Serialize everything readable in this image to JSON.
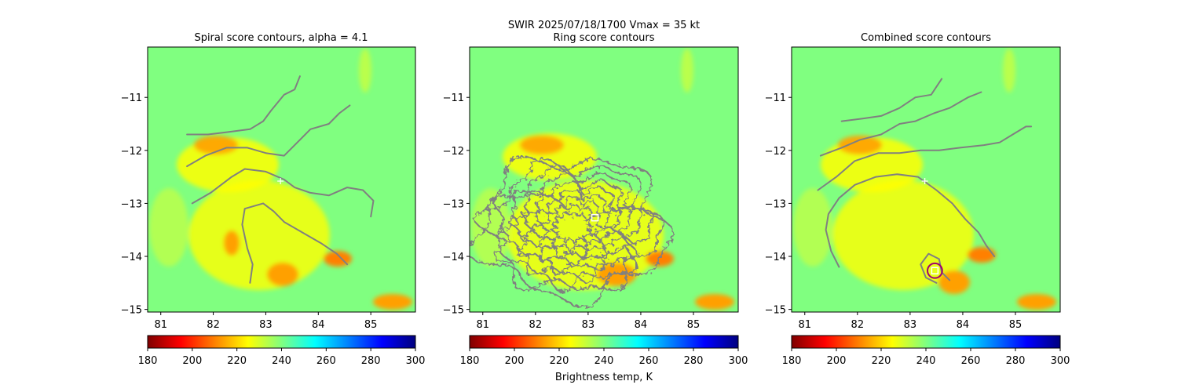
{
  "suptitle": {
    "line1": "SWIR  2025/07/18/1700    Vmax = 35 kt"
  },
  "colorbar_label": "Brightness temp, K",
  "colormap": "jet",
  "colors": {
    "background_field": "#7fff7f",
    "contour": "#808080",
    "center_circle": "#a0006e",
    "marker": "#ffffff"
  },
  "chart_data": [
    {
      "type": "heatmap",
      "title": "Spiral score contours, alpha =  4.1",
      "xlim": [
        80.75,
        85.85
      ],
      "ylim": [
        -15.05,
        -10.05
      ],
      "xticks": [
        "81",
        "82",
        "83",
        "84",
        "85"
      ],
      "yticks": [
        "−11",
        "−12",
        "−13",
        "−14",
        "−15"
      ],
      "colorbar": {
        "range": [
          180,
          300
        ],
        "ticks": [
          "180",
          "200",
          "220",
          "240",
          "260",
          "280",
          "300"
        ]
      },
      "contours": [
        [
          [
            81.5,
            -11.7
          ],
          [
            81.9,
            -11.7
          ],
          [
            82.3,
            -11.65
          ],
          [
            82.7,
            -11.6
          ],
          [
            82.95,
            -11.45
          ],
          [
            83.1,
            -11.25
          ],
          [
            83.35,
            -10.95
          ],
          [
            83.55,
            -10.85
          ],
          [
            83.65,
            -10.6
          ]
        ],
        [
          [
            81.5,
            -12.3
          ],
          [
            81.85,
            -12.1
          ],
          [
            82.25,
            -11.95
          ],
          [
            82.65,
            -11.95
          ],
          [
            83.0,
            -12.05
          ],
          [
            83.35,
            -12.1
          ],
          [
            83.6,
            -11.85
          ],
          [
            83.85,
            -11.6
          ],
          [
            84.2,
            -11.5
          ],
          [
            84.4,
            -11.3
          ],
          [
            84.6,
            -11.15
          ]
        ],
        [
          [
            81.6,
            -13.0
          ],
          [
            81.95,
            -12.8
          ],
          [
            82.35,
            -12.5
          ],
          [
            82.6,
            -12.35
          ],
          [
            83.0,
            -12.4
          ],
          [
            83.35,
            -12.55
          ],
          [
            83.55,
            -12.7
          ],
          [
            83.85,
            -12.8
          ],
          [
            84.2,
            -12.85
          ],
          [
            84.55,
            -12.7
          ],
          [
            84.85,
            -12.75
          ],
          [
            85.05,
            -12.95
          ],
          [
            85.0,
            -13.25
          ]
        ],
        [
          [
            82.7,
            -14.5
          ],
          [
            82.75,
            -14.15
          ],
          [
            82.65,
            -13.85
          ],
          [
            82.55,
            -13.4
          ],
          [
            82.6,
            -13.1
          ],
          [
            82.95,
            -13.0
          ],
          [
            83.15,
            -13.15
          ],
          [
            83.35,
            -13.35
          ],
          [
            83.7,
            -13.55
          ],
          [
            84.05,
            -13.75
          ],
          [
            84.35,
            -13.95
          ],
          [
            84.55,
            -14.15
          ]
        ]
      ],
      "markers": [
        {
          "kind": "plus",
          "x": 83.28,
          "y": -12.58
        }
      ]
    },
    {
      "type": "heatmap",
      "title": "Ring score contours",
      "xlim": [
        80.75,
        85.85
      ],
      "ylim": [
        -15.05,
        -10.05
      ],
      "xticks": [
        "81",
        "82",
        "83",
        "84",
        "85"
      ],
      "yticks": [
        "−11",
        "−12",
        "−13",
        "−14",
        "−15"
      ],
      "colorbar": {
        "range": [
          180,
          300
        ],
        "ticks": [
          "180",
          "200",
          "220",
          "240",
          "260",
          "280",
          "300"
        ]
      },
      "ring": {
        "cx": 82.7,
        "cy": -13.45,
        "rx": 1.75,
        "ry": 1.3
      },
      "markers": [
        {
          "kind": "square",
          "x": 83.13,
          "y": -13.27
        }
      ]
    },
    {
      "type": "heatmap",
      "title": "Combined score contours",
      "xlim": [
        80.75,
        85.85
      ],
      "ylim": [
        -15.05,
        -10.05
      ],
      "xticks": [
        "81",
        "82",
        "83",
        "84",
        "85"
      ],
      "yticks": [
        "−11",
        "−12",
        "−13",
        "−14",
        "−15"
      ],
      "colorbar": {
        "range": [
          180,
          300
        ],
        "ticks": [
          "180",
          "200",
          "220",
          "240",
          "260",
          "280",
          "300"
        ]
      },
      "contours": [
        [
          [
            81.7,
            -11.45
          ],
          [
            82.1,
            -11.4
          ],
          [
            82.45,
            -11.35
          ],
          [
            82.8,
            -11.2
          ],
          [
            83.1,
            -11.0
          ],
          [
            83.4,
            -10.95
          ],
          [
            83.6,
            -10.65
          ]
        ],
        [
          [
            81.3,
            -12.1
          ],
          [
            81.7,
            -11.95
          ],
          [
            82.05,
            -11.8
          ],
          [
            82.45,
            -11.7
          ],
          [
            82.8,
            -11.5
          ],
          [
            83.1,
            -11.45
          ],
          [
            83.45,
            -11.3
          ],
          [
            83.75,
            -11.2
          ],
          [
            84.1,
            -11.0
          ],
          [
            84.35,
            -10.9
          ]
        ],
        [
          [
            81.25,
            -12.75
          ],
          [
            81.6,
            -12.5
          ],
          [
            81.95,
            -12.2
          ],
          [
            82.4,
            -12.05
          ],
          [
            82.8,
            -12.05
          ],
          [
            83.2,
            -12.0
          ],
          [
            83.55,
            -12.0
          ],
          [
            83.95,
            -11.95
          ],
          [
            84.4,
            -11.9
          ],
          [
            84.7,
            -11.85
          ],
          [
            84.95,
            -11.7
          ],
          [
            85.2,
            -11.55
          ],
          [
            85.3,
            -11.55
          ]
        ],
        [
          [
            81.65,
            -14.2
          ],
          [
            81.5,
            -13.9
          ],
          [
            81.4,
            -13.5
          ],
          [
            81.45,
            -13.2
          ],
          [
            81.65,
            -12.9
          ],
          [
            81.95,
            -12.65
          ],
          [
            82.35,
            -12.5
          ],
          [
            82.75,
            -12.45
          ],
          [
            83.15,
            -12.5
          ],
          [
            83.5,
            -12.75
          ],
          [
            83.8,
            -13.0
          ],
          [
            84.05,
            -13.3
          ],
          [
            84.3,
            -13.55
          ],
          [
            84.45,
            -13.8
          ],
          [
            84.6,
            -14.0
          ]
        ],
        [
          [
            83.5,
            -14.5
          ],
          [
            83.3,
            -14.4
          ],
          [
            83.2,
            -14.15
          ],
          [
            83.35,
            -13.95
          ],
          [
            83.55,
            -14.05
          ],
          [
            83.6,
            -14.3
          ],
          [
            83.75,
            -14.45
          ]
        ]
      ],
      "center_circle": {
        "x": 83.47,
        "y": -14.27,
        "r": 0.14
      },
      "markers": [
        {
          "kind": "plus",
          "x": 83.28,
          "y": -12.58
        },
        {
          "kind": "square",
          "x": 83.47,
          "y": -14.27
        }
      ]
    }
  ]
}
